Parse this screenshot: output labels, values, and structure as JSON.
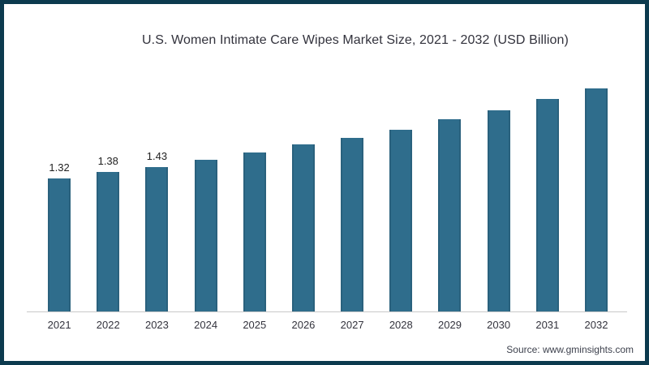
{
  "frame": {
    "border_color": "#0c3a4e",
    "background": "#ffffff"
  },
  "chart_data": {
    "type": "bar",
    "title": "U.S. Women Intimate Care Wipes Market Size, 2021 - 2032 (USD Billion)",
    "categories": [
      "2021",
      "2022",
      "2023",
      "2024",
      "2025",
      "2026",
      "2027",
      "2028",
      "2029",
      "2030",
      "2031",
      "2032"
    ],
    "values": [
      1.32,
      1.38,
      1.43,
      1.5,
      1.57,
      1.65,
      1.72,
      1.8,
      1.9,
      1.99,
      2.1,
      2.21
    ],
    "data_labels": [
      "1.32",
      "1.38",
      "1.43",
      "",
      "",
      "",
      "",
      "",
      "",
      "",
      "",
      ""
    ],
    "xlabel": "",
    "ylabel": "",
    "ylim": [
      0,
      2.4
    ],
    "grid": false,
    "legend": false,
    "bar_color": "#2f6d8c",
    "axis_line_color": "#c9c9c9"
  },
  "source": {
    "label": "Source: www.gminsights.com"
  }
}
